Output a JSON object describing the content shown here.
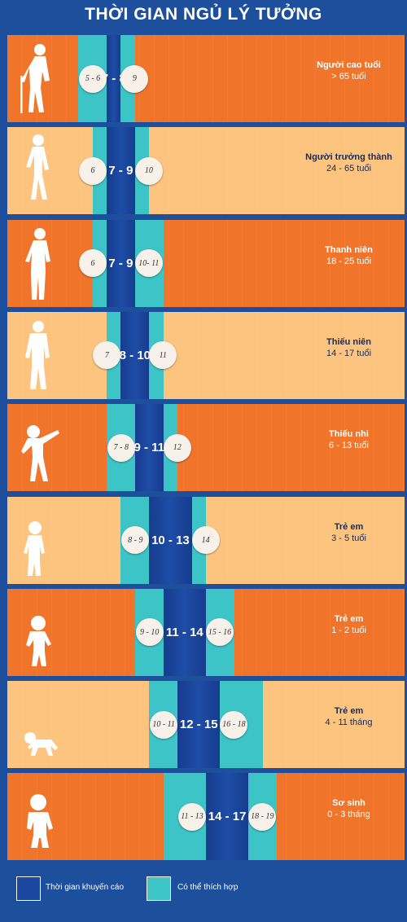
{
  "chart_data": {
    "type": "bar",
    "title": "THỜI GIAN NGỦ LÝ TƯỞNG",
    "x_domain": [
      0,
      28
    ],
    "groups": [
      {
        "name": "Người cao tuổi",
        "age": "> 65 tuổi",
        "shade": "dark",
        "figure": "elder",
        "low_label": "5 - 6",
        "recommended_label": "7 - 8",
        "high_label": "9",
        "appropriate": [
          5,
          9
        ],
        "recommended": [
          7,
          8
        ]
      },
      {
        "name": "Người trưởng thành",
        "age": "24 - 65 tuổi",
        "shade": "light",
        "figure": "adult",
        "low_label": "6",
        "recommended_label": "7 - 9",
        "high_label": "10",
        "appropriate": [
          6,
          10
        ],
        "recommended": [
          7,
          9
        ]
      },
      {
        "name": "Thanh niên",
        "age": "18 - 25 tuổi",
        "shade": "dark",
        "figure": "youth",
        "low_label": "6",
        "recommended_label": "7 - 9",
        "high_label": "10- 11",
        "appropriate": [
          6,
          11
        ],
        "recommended": [
          7,
          9
        ]
      },
      {
        "name": "Thiếu niên",
        "age": "14 - 17 tuổi",
        "shade": "light",
        "figure": "teen",
        "low_label": "7",
        "recommended_label": "8 - 10",
        "high_label": "11",
        "appropriate": [
          7,
          11
        ],
        "recommended": [
          8,
          10
        ]
      },
      {
        "name": "Thiếu nhi",
        "age": "6 - 13 tuổi",
        "shade": "dark",
        "figure": "child",
        "low_label": "7 - 8",
        "recommended_label": "9 - 11",
        "high_label": "12",
        "appropriate": [
          7,
          12
        ],
        "recommended": [
          9,
          11
        ]
      },
      {
        "name": "Trẻ em",
        "age": "3 - 5 tuổi",
        "shade": "light",
        "figure": "kid",
        "low_label": "8 - 9",
        "recommended_label": "10 - 13",
        "high_label": "14",
        "appropriate": [
          8,
          14
        ],
        "recommended": [
          10,
          13
        ]
      },
      {
        "name": "Trẻ em",
        "age": "1 - 2 tuổi",
        "shade": "dark",
        "figure": "toddler",
        "low_label": "9 - 10",
        "recommended_label": "11 - 14",
        "high_label": "15 - 16",
        "appropriate": [
          9,
          16
        ],
        "recommended": [
          11,
          14
        ]
      },
      {
        "name": "Trẻ em",
        "age": "4 - 11 tháng",
        "shade": "light",
        "figure": "crawler",
        "low_label": "10 - 11",
        "recommended_label": "12 - 15",
        "high_label": "16 - 18",
        "appropriate": [
          10,
          18
        ],
        "recommended": [
          12,
          15
        ]
      },
      {
        "name": "Sơ sinh",
        "age": "0 - 3 tháng",
        "shade": "dark",
        "figure": "newborn",
        "low_label": "11 - 13",
        "recommended_label": "14 - 17",
        "high_label": "18 - 19",
        "appropriate": [
          11,
          19
        ],
        "recommended": [
          14,
          17
        ]
      }
    ],
    "legend": [
      {
        "label": "Thời gian khuyến cáo",
        "color": "#1b47a1"
      },
      {
        "label": "Có thể thích hợp",
        "color": "#3cc4c7"
      }
    ],
    "colors": {
      "dark_row": "#f0742a",
      "light_row": "#fcc47e",
      "appropriate": "#3cc4c7",
      "recommended": "#1b47a1"
    }
  }
}
